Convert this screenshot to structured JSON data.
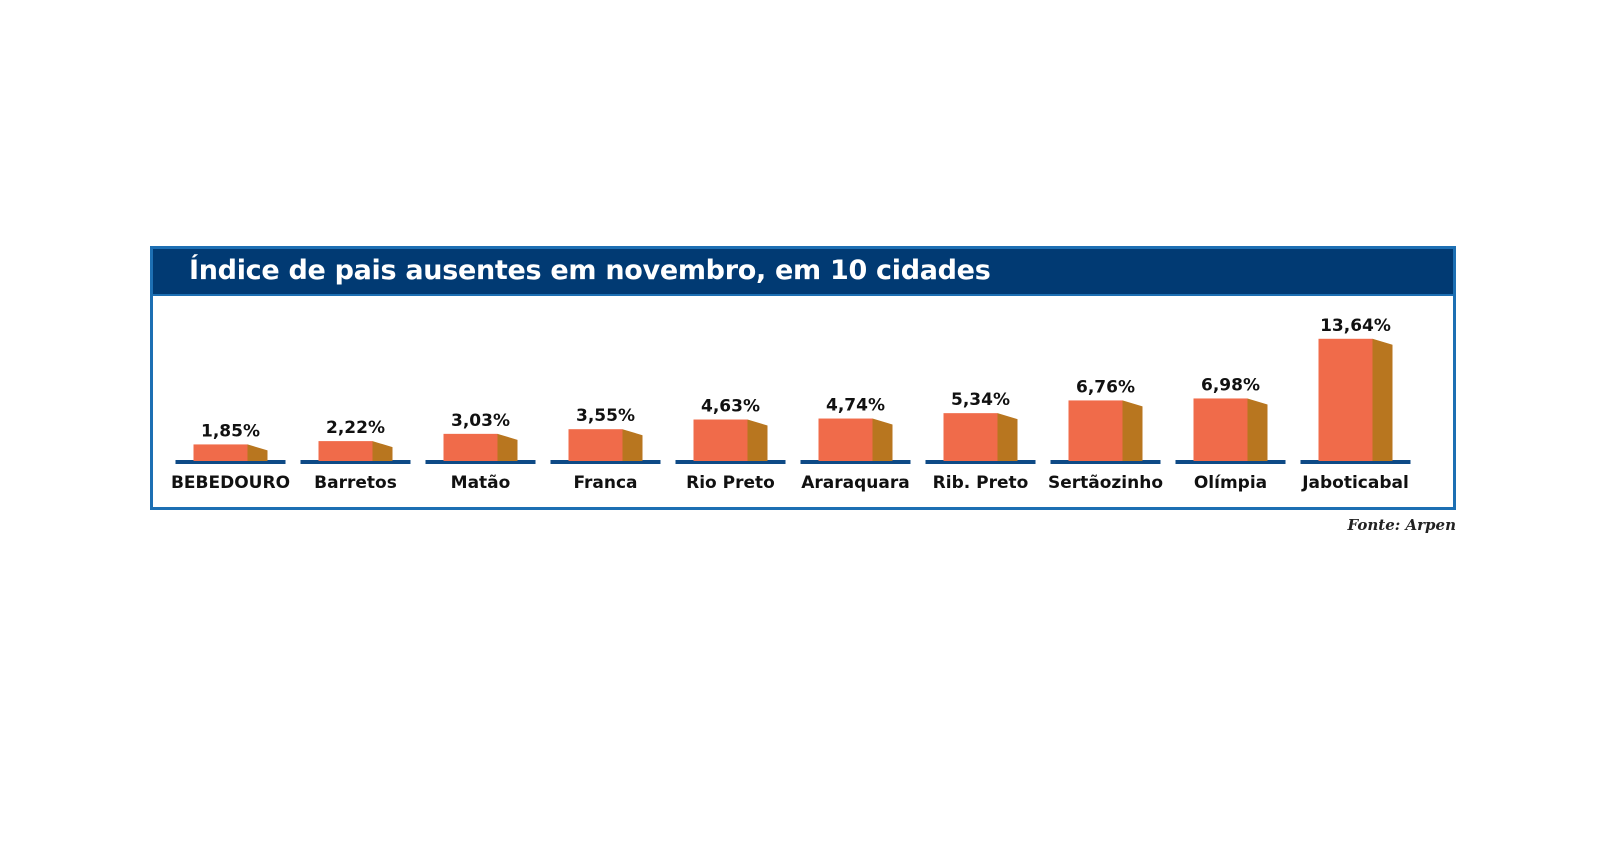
{
  "chart_data": {
    "type": "bar",
    "title": "Índice de pais ausentes em novembro, em 10 cidades",
    "categories": [
      "BEBEDOURO",
      "Barretos",
      "Matão",
      "Franca",
      "Rio Preto",
      "Araraquara",
      "Rib. Preto",
      "Sertãozinho",
      "Olímpia",
      "Jaboticabal"
    ],
    "values": [
      1.85,
      2.22,
      3.03,
      3.55,
      4.63,
      4.74,
      5.34,
      6.76,
      6.98,
      13.64
    ],
    "value_labels": [
      "1,85%",
      "2,22%",
      "3,03%",
      "3,55%",
      "4,63%",
      "4,74%",
      "5,34%",
      "6,76%",
      "6,98%",
      "13,64%"
    ],
    "xlabel": "",
    "ylabel": "",
    "ylim": [
      0,
      14
    ],
    "grid": false,
    "colors": {
      "bar_front": "#f06b4a",
      "bar_side": "#b8761f",
      "baseline": "#0e4a86",
      "title_bar": "#013a73",
      "frame": "#1d6fb3"
    }
  },
  "source": "Fonte: Arpen"
}
